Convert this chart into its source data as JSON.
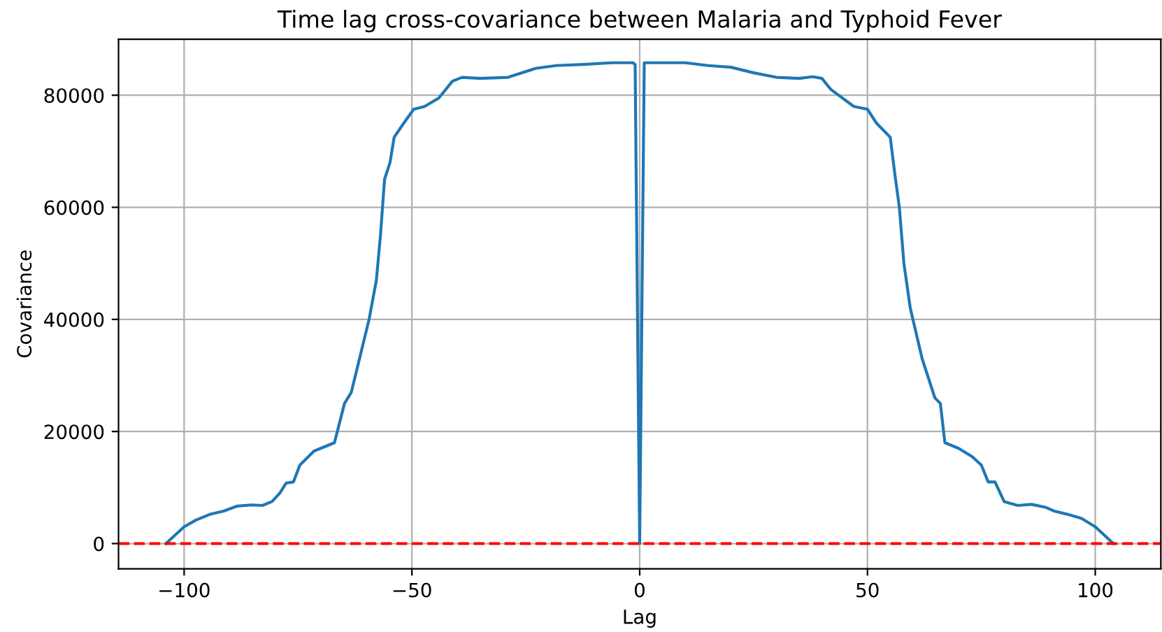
{
  "chart_data": {
    "type": "line",
    "title": "Time lag cross-covariance between Malaria and Typhoid Fever",
    "xlabel": "Lag",
    "ylabel": "Covariance",
    "series": [
      {
        "color": "#1f77b4",
        "x": [
          -104,
          -102,
          -100,
          -97.4,
          -94.4,
          -91.3,
          -88.3,
          -85.2,
          -82.8,
          -80.7,
          -79,
          -77.6,
          -76,
          -74.6,
          -71.5,
          -68.5,
          -67,
          -64.8,
          -63.3,
          -61.5,
          -59.4,
          -57.8,
          -56.9,
          -56,
          -54.8,
          -53.9,
          -51.8,
          -49.6,
          -47.2,
          -44.1,
          -41.1,
          -39,
          -35,
          -28.9,
          -25.9,
          -22.8,
          -18.3,
          -12.2,
          -6.1,
          -1.5,
          -1,
          0,
          1,
          2,
          10,
          15,
          20,
          25,
          30,
          35,
          38,
          40,
          42,
          47,
          50,
          52,
          55,
          56,
          57,
          58,
          59.4,
          62,
          64.8,
          66,
          67,
          70,
          73,
          75,
          76.5,
          78,
          80,
          83,
          86,
          89,
          91,
          94,
          97,
          100,
          102,
          104
        ],
        "values": [
          0,
          1500,
          3000,
          4200,
          5200,
          5800,
          6700,
          6900,
          6800,
          7500,
          9000,
          10800,
          11000,
          14000,
          16500,
          17500,
          18000,
          25000,
          27000,
          33000,
          40000,
          47000,
          55000,
          65000,
          68000,
          72500,
          75000,
          77500,
          78000,
          79500,
          82500,
          83200,
          83000,
          83200,
          84000,
          84800,
          85300,
          85500,
          85800,
          85800,
          85500,
          0,
          85800,
          85800,
          85800,
          85300,
          85000,
          84000,
          83200,
          83000,
          83300,
          83000,
          81000,
          78000,
          77500,
          75000,
          72500,
          66000,
          60000,
          50000,
          42000,
          33000,
          26000,
          25000,
          18000,
          17000,
          15500,
          14000,
          11000,
          11000,
          7500,
          6800,
          7000,
          6500,
          5800,
          5200,
          4500,
          3000,
          1500,
          0
        ]
      }
    ],
    "xlim": [
      -114.4,
      114.4
    ],
    "ylim": [
      -4500,
      90000
    ],
    "xticks": [
      {
        "value": -100,
        "label": "−100"
      },
      {
        "value": -50,
        "label": "−50"
      },
      0,
      50,
      100
    ],
    "yticks": [
      0,
      20000,
      40000,
      60000,
      80000
    ],
    "ref_lines": [
      {
        "axis": "y",
        "value": 0,
        "color": "#ff0000",
        "line_style": "dashed"
      }
    ],
    "grid": true
  }
}
